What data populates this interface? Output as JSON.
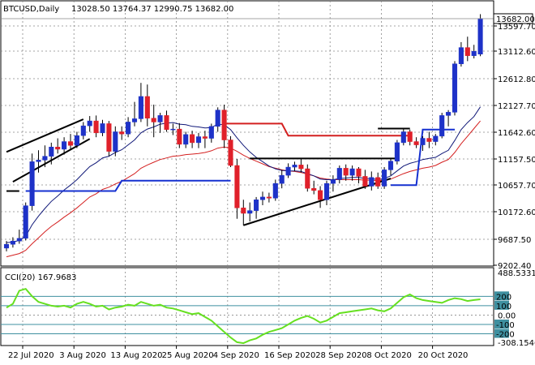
{
  "header": {
    "symbol": "BTCUSD,Daily",
    "ohlc": "13028.50 13764.37 12990.75 13682.00"
  },
  "colors": {
    "bull": "#1e32c8",
    "bear": "#e0202a",
    "ema_fast": "#101878",
    "ema_slow": "#d42020",
    "support_line": "#1530d0",
    "resistance_line": "#d42020",
    "trendline": "#000000",
    "cci_line": "#66e020",
    "cci_level": "#3f90a0",
    "grid": "#888888"
  },
  "chart_data": [
    {
      "type": "candlestick",
      "name": "price",
      "y_ticks": [
        "13597.70",
        "13112.60",
        "12612.80",
        "12127.70",
        "11642.60",
        "11157.50",
        "10657.70",
        "10172.60",
        "9687.50",
        "9202.40"
      ],
      "last_price": "13682.00",
      "x_labels": [
        "22 Jul 2020",
        "3 Aug 2020",
        "13 Aug 2020",
        "25 Aug 2020",
        "4 Sep 2020",
        "16 Sep 2020",
        "28 Sep 2020",
        "8 Oct 2020",
        "20 Oct 2020"
      ],
      "ylim": [
        9160,
        13980
      ],
      "candles": [
        {
          "o": 9460,
          "h": 9590,
          "l": 9400,
          "c": 9530
        },
        {
          "o": 9530,
          "h": 9660,
          "l": 9470,
          "c": 9590
        },
        {
          "o": 9590,
          "h": 9800,
          "l": 9540,
          "c": 9640
        },
        {
          "o": 9640,
          "h": 10300,
          "l": 9600,
          "c": 10240
        },
        {
          "o": 10240,
          "h": 11200,
          "l": 10150,
          "c": 11050
        },
        {
          "o": 11050,
          "h": 11260,
          "l": 10850,
          "c": 11080
        },
        {
          "o": 11080,
          "h": 11350,
          "l": 10950,
          "c": 11150
        },
        {
          "o": 11150,
          "h": 11400,
          "l": 11000,
          "c": 11320
        },
        {
          "o": 11320,
          "h": 11480,
          "l": 11200,
          "c": 11280
        },
        {
          "o": 11280,
          "h": 11500,
          "l": 11180,
          "c": 11420
        },
        {
          "o": 11420,
          "h": 11560,
          "l": 11260,
          "c": 11350
        },
        {
          "o": 11350,
          "h": 11600,
          "l": 11300,
          "c": 11530
        },
        {
          "o": 11530,
          "h": 11780,
          "l": 11460,
          "c": 11710
        },
        {
          "o": 11710,
          "h": 11890,
          "l": 11600,
          "c": 11800
        },
        {
          "o": 11800,
          "h": 11900,
          "l": 11500,
          "c": 11580
        },
        {
          "o": 11580,
          "h": 11820,
          "l": 11520,
          "c": 11750
        },
        {
          "o": 11750,
          "h": 11800,
          "l": 11150,
          "c": 11240
        },
        {
          "o": 11240,
          "h": 11700,
          "l": 11150,
          "c": 11600
        },
        {
          "o": 11600,
          "h": 11700,
          "l": 11450,
          "c": 11560
        },
        {
          "o": 11560,
          "h": 11870,
          "l": 11500,
          "c": 11780
        },
        {
          "o": 11780,
          "h": 12150,
          "l": 11700,
          "c": 11840
        },
        {
          "o": 11840,
          "h": 12500,
          "l": 11780,
          "c": 12250
        },
        {
          "o": 12250,
          "h": 12470,
          "l": 11700,
          "c": 11850
        },
        {
          "o": 11850,
          "h": 12100,
          "l": 11500,
          "c": 11780
        },
        {
          "o": 11780,
          "h": 11950,
          "l": 11580,
          "c": 11900
        },
        {
          "o": 11900,
          "h": 11990,
          "l": 11600,
          "c": 11640
        },
        {
          "o": 11640,
          "h": 11750,
          "l": 11540,
          "c": 11650
        },
        {
          "o": 11650,
          "h": 11760,
          "l": 11300,
          "c": 11370
        },
        {
          "o": 11370,
          "h": 11600,
          "l": 11300,
          "c": 11550
        },
        {
          "o": 11550,
          "h": 11620,
          "l": 11300,
          "c": 11400
        },
        {
          "o": 11400,
          "h": 11580,
          "l": 11300,
          "c": 11510
        },
        {
          "o": 11510,
          "h": 11620,
          "l": 11300,
          "c": 11480
        },
        {
          "o": 11480,
          "h": 11750,
          "l": 11400,
          "c": 11700
        },
        {
          "o": 11700,
          "h": 12050,
          "l": 11600,
          "c": 12000
        },
        {
          "o": 12000,
          "h": 12100,
          "l": 11300,
          "c": 11450
        },
        {
          "o": 11450,
          "h": 11520,
          "l": 10950,
          "c": 10980
        },
        {
          "o": 10980,
          "h": 11100,
          "l": 10000,
          "c": 10200
        },
        {
          "o": 10200,
          "h": 10350,
          "l": 9880,
          "c": 10100
        },
        {
          "o": 10100,
          "h": 10300,
          "l": 9950,
          "c": 10150
        },
        {
          "o": 10150,
          "h": 10400,
          "l": 10000,
          "c": 10350
        },
        {
          "o": 10350,
          "h": 10500,
          "l": 10250,
          "c": 10400
        },
        {
          "o": 10400,
          "h": 10480,
          "l": 10300,
          "c": 10380
        },
        {
          "o": 10380,
          "h": 10720,
          "l": 10330,
          "c": 10650
        },
        {
          "o": 10650,
          "h": 10900,
          "l": 10560,
          "c": 10800
        },
        {
          "o": 10800,
          "h": 11020,
          "l": 10750,
          "c": 10950
        },
        {
          "o": 10950,
          "h": 11050,
          "l": 10880,
          "c": 10990
        },
        {
          "o": 10990,
          "h": 11100,
          "l": 10850,
          "c": 10920
        },
        {
          "o": 10920,
          "h": 11000,
          "l": 10500,
          "c": 10560
        },
        {
          "o": 10560,
          "h": 10700,
          "l": 10450,
          "c": 10520
        },
        {
          "o": 10520,
          "h": 10600,
          "l": 10200,
          "c": 10350
        },
        {
          "o": 10350,
          "h": 10700,
          "l": 10250,
          "c": 10650
        },
        {
          "o": 10650,
          "h": 10800,
          "l": 10500,
          "c": 10720
        },
        {
          "o": 10720,
          "h": 10980,
          "l": 10650,
          "c": 10930
        },
        {
          "o": 10930,
          "h": 11000,
          "l": 10700,
          "c": 10800
        },
        {
          "o": 10800,
          "h": 10980,
          "l": 10700,
          "c": 10920
        },
        {
          "o": 10920,
          "h": 10950,
          "l": 10650,
          "c": 10780
        },
        {
          "o": 10780,
          "h": 10900,
          "l": 10550,
          "c": 10600
        },
        {
          "o": 10600,
          "h": 10870,
          "l": 10520,
          "c": 10760
        },
        {
          "o": 10760,
          "h": 10850,
          "l": 10550,
          "c": 10600
        },
        {
          "o": 10600,
          "h": 10950,
          "l": 10550,
          "c": 10900
        },
        {
          "o": 10900,
          "h": 11100,
          "l": 10800,
          "c": 11060
        },
        {
          "o": 11060,
          "h": 11450,
          "l": 11000,
          "c": 11400
        },
        {
          "o": 11400,
          "h": 11650,
          "l": 11350,
          "c": 11600
        },
        {
          "o": 11600,
          "h": 11640,
          "l": 11350,
          "c": 11420
        },
        {
          "o": 11420,
          "h": 11500,
          "l": 11300,
          "c": 11360
        },
        {
          "o": 11360,
          "h": 11520,
          "l": 11250,
          "c": 11480
        },
        {
          "o": 11480,
          "h": 11600,
          "l": 11300,
          "c": 11420
        },
        {
          "o": 11420,
          "h": 11560,
          "l": 11350,
          "c": 11520
        },
        {
          "o": 11520,
          "h": 11950,
          "l": 11480,
          "c": 11900
        },
        {
          "o": 11900,
          "h": 12000,
          "l": 11700,
          "c": 11960
        },
        {
          "o": 11960,
          "h": 12900,
          "l": 11900,
          "c": 12850
        },
        {
          "o": 12850,
          "h": 13250,
          "l": 12800,
          "c": 13150
        },
        {
          "o": 13150,
          "h": 13350,
          "l": 12900,
          "c": 13000
        },
        {
          "o": 13000,
          "h": 13200,
          "l": 12950,
          "c": 13080
        },
        {
          "o": 13028.5,
          "h": 13764.37,
          "l": 12990.75,
          "c": 13682
        }
      ],
      "overlays": {
        "ema_fast": [
          9560,
          9575,
          9600,
          9680,
          9890,
          10050,
          10190,
          10320,
          10420,
          10530,
          10620,
          10720,
          10840,
          10960,
          11030,
          11120,
          11150,
          11220,
          11270,
          11360,
          11450,
          11580,
          11650,
          11690,
          11740,
          11760,
          11770,
          11740,
          11730,
          11700,
          11690,
          11670,
          11680,
          11740,
          11730,
          11640,
          11490,
          11350,
          11230,
          11130,
          11050,
          10970,
          10920,
          10890,
          10880,
          10880,
          10870,
          10830,
          10790,
          10730,
          10720,
          10720,
          10740,
          10750,
          10760,
          10760,
          10740,
          10740,
          10720,
          10740,
          10790,
          10880,
          10970,
          11020,
          11050,
          11090,
          11110,
          11130,
          11200,
          11260,
          11440,
          11640,
          11770,
          11880,
          12060
        ],
        "ema_slow": [
          9300,
          9330,
          9360,
          9420,
          9540,
          9650,
          9760,
          9860,
          9940,
          10030,
          10110,
          10200,
          10300,
          10400,
          10460,
          10540,
          10580,
          10640,
          10690,
          10760,
          10830,
          10930,
          10990,
          11040,
          11090,
          11120,
          11150,
          11160,
          11180,
          11190,
          11200,
          11220,
          11250,
          11300,
          11320,
          11300,
          11240,
          11170,
          11110,
          11060,
          11010,
          10960,
          10930,
          10900,
          10880,
          10870,
          10850,
          10820,
          10790,
          10750,
          10730,
          10720,
          10720,
          10720,
          10720,
          10720,
          10710,
          10710,
          10700,
          10710,
          10730,
          10780,
          10830,
          10870,
          10900,
          10930,
          10950,
          10980,
          11040,
          11090,
          11220,
          11380,
          11520,
          11660,
          11800
        ],
        "support_line": [
          {
            "from": 3,
            "to": 17,
            "value": 10510
          },
          {
            "from": 18,
            "to": 35,
            "value": 10700
          },
          {
            "from": 60,
            "to": 64,
            "value": 10620
          },
          {
            "from": 65,
            "to": 70,
            "value": 11640
          }
        ],
        "resistance_line": [
          {
            "from": 34,
            "to": 43,
            "value": 11750
          },
          {
            "from": 44,
            "to": 63,
            "value": 11530
          }
        ],
        "trendlines": [
          {
            "from": [
              0,
              11230
            ],
            "to": [
              12,
              11830
            ]
          },
          {
            "from": [
              1,
              10680
            ],
            "to": [
              13,
              11470
            ]
          },
          {
            "from": [
              37,
              9880
            ],
            "to": [
              60,
              10740
            ]
          },
          {
            "from": [
              38,
              11110
            ],
            "to": [
              61,
              11110
            ]
          },
          {
            "from": [
              58,
              11660
            ],
            "to": [
              63,
              11660
            ]
          },
          {
            "from": [
              0,
              10510
            ],
            "to": [
              2,
              10510
            ]
          }
        ]
      }
    },
    {
      "type": "line",
      "name": "CCI",
      "title": "CCI(20) 167.9683",
      "y_ticks": [
        "488.5331",
        "200",
        "100",
        "0.00",
        "-100",
        "-200",
        "-308.1546"
      ],
      "ylim": [
        -308.1546,
        488.5331
      ],
      "levels": [
        200,
        100,
        -100,
        -200
      ],
      "values": [
        80,
        120,
        260,
        280,
        200,
        140,
        120,
        100,
        90,
        100,
        80,
        120,
        140,
        120,
        90,
        100,
        60,
        80,
        90,
        110,
        100,
        140,
        120,
        100,
        110,
        80,
        70,
        50,
        30,
        10,
        20,
        -20,
        -60,
        -120,
        -180,
        -240,
        -290,
        -300,
        -270,
        -250,
        -210,
        -180,
        -160,
        -140,
        -100,
        -60,
        -30,
        -10,
        -40,
        -80,
        -60,
        -20,
        20,
        30,
        40,
        50,
        60,
        70,
        50,
        40,
        70,
        130,
        190,
        220,
        180,
        160,
        150,
        140,
        130,
        160,
        180,
        170,
        150,
        160,
        167.97
      ]
    }
  ]
}
